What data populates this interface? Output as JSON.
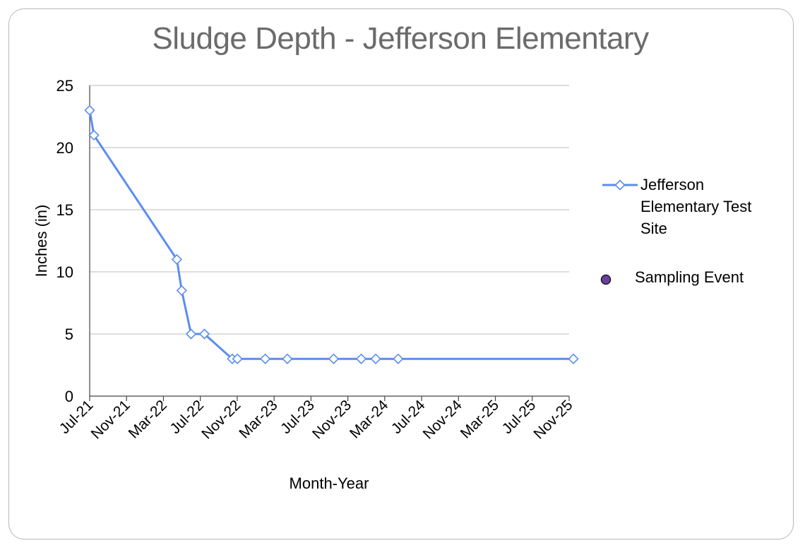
{
  "chart_data": {
    "type": "line",
    "title": "Sludge Depth - Jefferson Elementary",
    "xlabel": "Month-Year",
    "ylabel": "Inches (in)",
    "ylim": [
      0,
      25
    ],
    "yticks": [
      "0",
      "5",
      "10",
      "15",
      "20",
      "25"
    ],
    "xticks": [
      "Jul-21",
      "Nov-21",
      "Mar-22",
      "Jul-22",
      "Nov-22",
      "Mar-23",
      "Jul-23",
      "Nov-23",
      "Mar-24",
      "Jul-24",
      "Nov-24",
      "Mar-25",
      "Jul-25",
      "Nov-25"
    ],
    "grid": "horizontal",
    "legend_position": "right",
    "series": [
      {
        "name": "Jefferson Elementary Test Site",
        "color": "#5b8def",
        "marker": "diamond-open",
        "points": [
          {
            "x": "2021-07-01",
            "y": 23
          },
          {
            "x": "2021-07-15",
            "y": 21
          },
          {
            "x": "2022-04-15",
            "y": 11
          },
          {
            "x": "2022-05-01",
            "y": 8.5
          },
          {
            "x": "2022-06-01",
            "y": 5
          },
          {
            "x": "2022-07-15",
            "y": 5
          },
          {
            "x": "2022-10-15",
            "y": 3
          },
          {
            "x": "2022-11-01",
            "y": 3
          },
          {
            "x": "2023-02-01",
            "y": 3
          },
          {
            "x": "2023-04-15",
            "y": 3
          },
          {
            "x": "2023-09-15",
            "y": 3
          },
          {
            "x": "2023-12-15",
            "y": 3
          },
          {
            "x": "2024-02-01",
            "y": 3
          },
          {
            "x": "2024-04-15",
            "y": 3
          },
          {
            "x": "2025-11-15",
            "y": 3
          }
        ]
      }
    ],
    "legend": [
      {
        "label": "Jefferson Elementary Test Site",
        "symbol": "line-diamond",
        "color": "#5b8def"
      },
      {
        "label": "Sampling Event",
        "symbol": "dot",
        "color": "#6a3fa0"
      }
    ]
  }
}
